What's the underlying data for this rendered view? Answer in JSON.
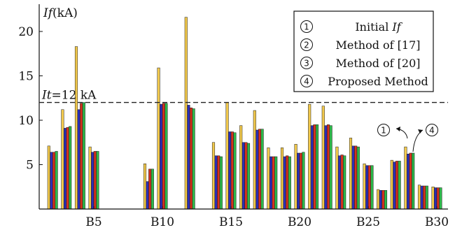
{
  "chart_data": {
    "type": "bar",
    "y_axis_title": {
      "italic": "If",
      "rest": "(kA)"
    },
    "ylim": [
      0,
      22
    ],
    "y_ticks": [
      5,
      10,
      15,
      20
    ],
    "x_tick_labels": [
      {
        "bus": 5,
        "label": "B5"
      },
      {
        "bus": 10,
        "label": "B10"
      },
      {
        "bus": 15,
        "label": "B15"
      },
      {
        "bus": 20,
        "label": "B20"
      },
      {
        "bus": 25,
        "label": "B25"
      },
      {
        "bus": 30,
        "label": "B30"
      }
    ],
    "threshold": {
      "value": 12,
      "label_italic": "It",
      "label_rest": "=12 kA"
    },
    "series": [
      {
        "marker": "①",
        "name_plain": "Initial ",
        "name_italic": "If",
        "color": "#F2C94C"
      },
      {
        "marker": "②",
        "name_plain": "Method of [17]",
        "name_italic": "",
        "color": "#2B2FB8"
      },
      {
        "marker": "③",
        "name_plain": "Method of [20]",
        "name_italic": "",
        "color": "#D6311E"
      },
      {
        "marker": "④",
        "name_plain": "Proposed Method",
        "name_italic": "",
        "color": "#2DB84A"
      }
    ],
    "data": [
      {
        "bus": 2,
        "values": [
          7.1,
          6.4,
          6.4,
          6.5
        ]
      },
      {
        "bus": 3,
        "values": [
          11.2,
          9.1,
          9.2,
          9.3
        ]
      },
      {
        "bus": 4,
        "values": [
          18.3,
          11.2,
          11.9,
          12.0
        ]
      },
      {
        "bus": 5,
        "values": [
          7.0,
          6.4,
          6.5,
          6.5
        ]
      },
      {
        "bus": 9,
        "values": [
          5.1,
          3.1,
          4.5,
          4.5
        ]
      },
      {
        "bus": 10,
        "values": [
          15.9,
          11.8,
          11.9,
          11.9
        ]
      },
      {
        "bus": 12,
        "values": [
          21.6,
          11.7,
          11.4,
          11.3
        ]
      },
      {
        "bus": 14,
        "values": [
          7.5,
          6.0,
          6.0,
          5.9
        ]
      },
      {
        "bus": 15,
        "values": [
          12.0,
          8.7,
          8.7,
          8.6
        ]
      },
      {
        "bus": 16,
        "values": [
          9.4,
          7.5,
          7.5,
          7.4
        ]
      },
      {
        "bus": 17,
        "values": [
          11.1,
          8.9,
          9.0,
          9.0
        ]
      },
      {
        "bus": 18,
        "values": [
          6.9,
          5.9,
          5.9,
          5.9
        ]
      },
      {
        "bus": 19,
        "values": [
          6.9,
          5.9,
          6.0,
          5.9
        ]
      },
      {
        "bus": 20,
        "values": [
          7.3,
          6.3,
          6.3,
          6.4
        ]
      },
      {
        "bus": 21,
        "values": [
          11.8,
          9.4,
          9.5,
          9.5
        ]
      },
      {
        "bus": 22,
        "values": [
          11.6,
          9.4,
          9.5,
          9.4
        ]
      },
      {
        "bus": 23,
        "values": [
          7.0,
          6.0,
          6.1,
          6.0
        ]
      },
      {
        "bus": 24,
        "values": [
          8.0,
          7.1,
          7.1,
          7.0
        ]
      },
      {
        "bus": 25,
        "values": [
          5.1,
          4.9,
          4.9,
          4.9
        ]
      },
      {
        "bus": 26,
        "values": [
          2.2,
          2.1,
          2.1,
          2.1
        ]
      },
      {
        "bus": 27,
        "values": [
          5.5,
          5.3,
          5.4,
          5.4
        ]
      },
      {
        "bus": 28,
        "values": [
          7.0,
          6.2,
          6.3,
          6.3
        ]
      },
      {
        "bus": 29,
        "values": [
          2.7,
          2.6,
          2.6,
          2.6
        ]
      },
      {
        "bus": 30,
        "values": [
          2.5,
          2.4,
          2.4,
          2.4
        ]
      }
    ],
    "annotations": [
      {
        "marker": "①",
        "bus": 28,
        "series_index": 0
      },
      {
        "marker": "④",
        "bus": 28,
        "series_index": 3
      }
    ],
    "legend_position": "top-right",
    "grid": false
  }
}
